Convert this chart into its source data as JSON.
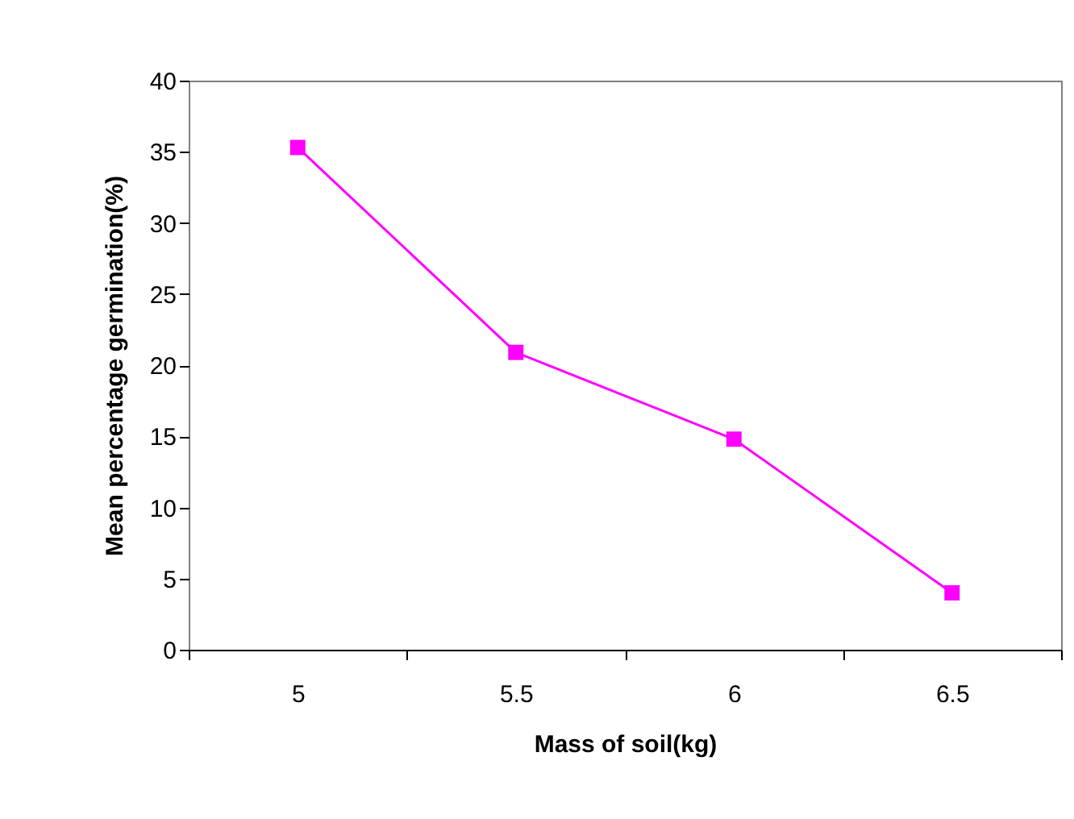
{
  "chart_data": {
    "type": "line",
    "xlabel": "Mass of soil(kg)",
    "ylabel": "Mean percentage germination(%)",
    "categories": [
      "5",
      "5.5",
      "6",
      "6.5"
    ],
    "series": [
      {
        "color": "#ff00ff",
        "values": [
          35.3,
          20.9,
          14.8,
          4.0
        ]
      }
    ],
    "ylim": [
      0,
      40
    ],
    "yticks": [
      0,
      5,
      10,
      15,
      20,
      25,
      30,
      35,
      40
    ],
    "grid": false,
    "legend": false,
    "marker": "square",
    "line_style": "solid"
  }
}
